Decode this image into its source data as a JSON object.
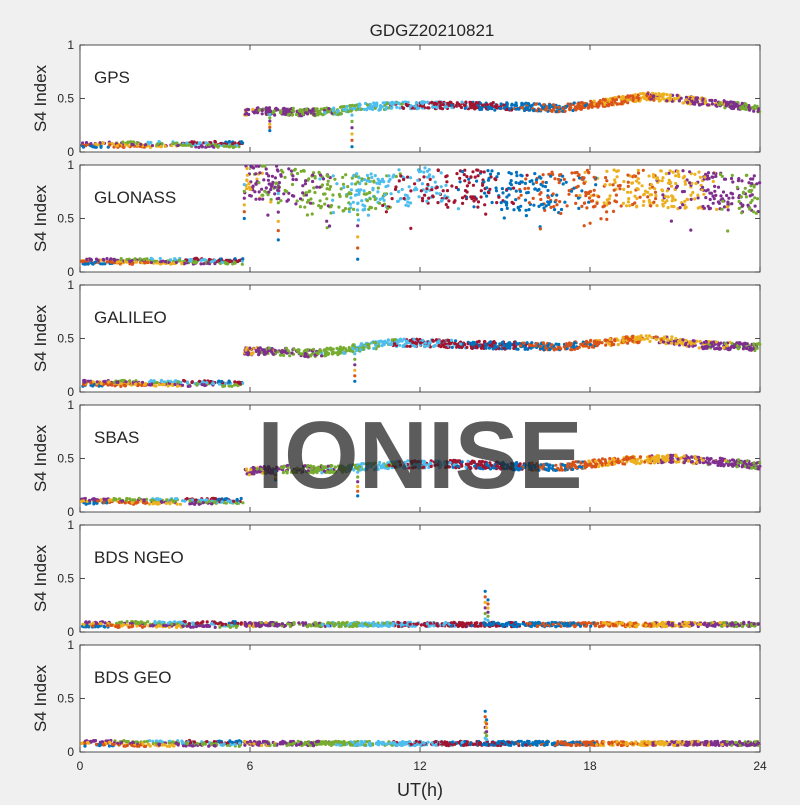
{
  "chart_data": {
    "type": "scatter",
    "title": "GDGZ20210821",
    "xlabel": "UT(h)",
    "ylabel": "S4 Index",
    "xlim": [
      0,
      24
    ],
    "xticks": [
      0,
      6,
      12,
      18,
      24
    ],
    "ylim": [
      0,
      1
    ],
    "yticks": [
      0,
      0.5,
      1
    ],
    "grid": false,
    "legend": false,
    "watermark": "IONISE",
    "colors": [
      "#0072BD",
      "#D95319",
      "#EDB120",
      "#7E2F8E",
      "#77AC30",
      "#4DBEEE",
      "#A2142F"
    ],
    "panels": [
      {
        "label": "GPS",
        "night_level": 0.07,
        "day_profile": [
          [
            5.8,
            0.38
          ],
          [
            7,
            0.38
          ],
          [
            8,
            0.37
          ],
          [
            9,
            0.38
          ],
          [
            10,
            0.42
          ],
          [
            12,
            0.44
          ],
          [
            14,
            0.43
          ],
          [
            16,
            0.42
          ],
          [
            17,
            0.41
          ],
          [
            18,
            0.44
          ],
          [
            19,
            0.48
          ],
          [
            20,
            0.52
          ],
          [
            21,
            0.5
          ],
          [
            22,
            0.47
          ],
          [
            23,
            0.44
          ],
          [
            24,
            0.4
          ]
        ],
        "spikes": [
          [
            9.6,
            0.05
          ],
          [
            6.7,
            0.2
          ]
        ]
      },
      {
        "label": "GLONASS",
        "night_level": 0.1,
        "day_profile": [
          [
            5.8,
            0.88
          ],
          [
            7,
            0.82
          ],
          [
            8,
            0.78
          ],
          [
            9,
            0.72
          ],
          [
            10,
            0.75
          ],
          [
            12,
            0.8
          ],
          [
            14,
            0.78
          ],
          [
            16,
            0.74
          ],
          [
            18,
            0.78
          ],
          [
            20,
            0.78
          ],
          [
            22,
            0.76
          ],
          [
            24,
            0.72
          ]
        ],
        "spikes": [
          [
            7,
            0.3
          ],
          [
            9.8,
            0.12
          ],
          [
            5.8,
            0.5
          ]
        ]
      },
      {
        "label": "GALILEO",
        "night_level": 0.08,
        "day_profile": [
          [
            5.8,
            0.38
          ],
          [
            7,
            0.38
          ],
          [
            8,
            0.36
          ],
          [
            9,
            0.38
          ],
          [
            10,
            0.42
          ],
          [
            11,
            0.46
          ],
          [
            12,
            0.46
          ],
          [
            14,
            0.44
          ],
          [
            16,
            0.43
          ],
          [
            17,
            0.42
          ],
          [
            18,
            0.45
          ],
          [
            20,
            0.5
          ],
          [
            21,
            0.48
          ],
          [
            22,
            0.44
          ],
          [
            24,
            0.42
          ]
        ],
        "spikes": [
          [
            9.7,
            0.1
          ]
        ]
      },
      {
        "label": "SBAS",
        "night_level": 0.1,
        "day_profile": [
          [
            5.8,
            0.38
          ],
          [
            7,
            0.4
          ],
          [
            9,
            0.4
          ],
          [
            11,
            0.44
          ],
          [
            13,
            0.45
          ],
          [
            15,
            0.43
          ],
          [
            17,
            0.42
          ],
          [
            19,
            0.48
          ],
          [
            21,
            0.5
          ],
          [
            23,
            0.46
          ],
          [
            24,
            0.43
          ]
        ],
        "spikes": [
          [
            9.8,
            0.15
          ],
          [
            6.9,
            0.3
          ]
        ]
      },
      {
        "label": "BDS NGEO",
        "night_level": 0.07,
        "day_profile": [
          [
            5.8,
            0.07
          ],
          [
            24,
            0.07
          ]
        ],
        "spikes": [
          [
            14.3,
            0.38
          ],
          [
            14.4,
            0.3
          ]
        ]
      },
      {
        "label": "BDS GEO",
        "night_level": 0.08,
        "day_profile": [
          [
            5.8,
            0.08
          ],
          [
            24,
            0.08
          ]
        ],
        "spikes": [
          [
            14.3,
            0.38
          ],
          [
            14.35,
            0.3
          ]
        ]
      }
    ]
  }
}
